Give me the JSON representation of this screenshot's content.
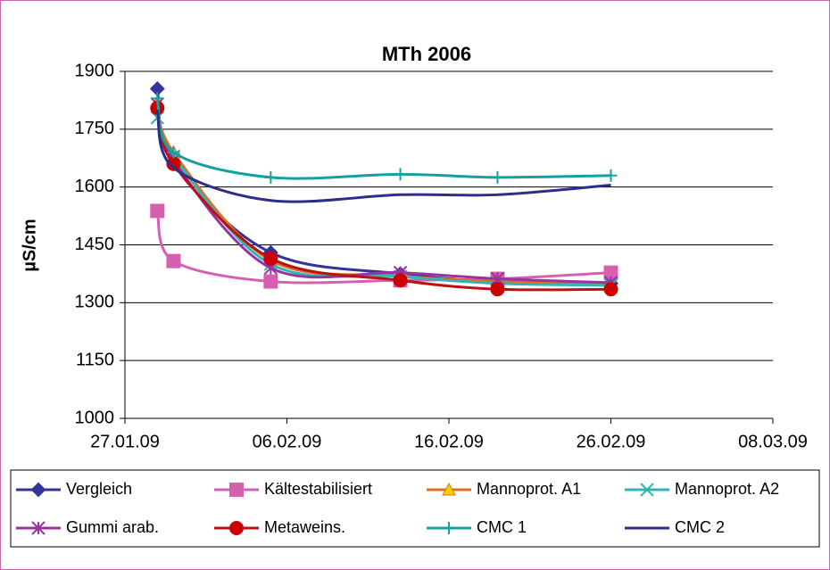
{
  "chart_data": {
    "type": "line",
    "title": "MTh 2006",
    "y_label": "µS/cm",
    "x": [
      "2009-01-29",
      "2009-01-30",
      "2009-02-05",
      "2009-02-13",
      "2009-02-19",
      "2009-02-26"
    ],
    "xlim": [
      "2009-01-27",
      "2009-03-08"
    ],
    "xticks": [
      {
        "value": "2009-01-27",
        "label": "27.01.09"
      },
      {
        "value": "2009-02-06",
        "label": "06.02.09"
      },
      {
        "value": "2009-02-16",
        "label": "16.02.09"
      },
      {
        "value": "2009-02-26",
        "label": "26.02.09"
      },
      {
        "value": "2009-03-08",
        "label": "08.03.09"
      }
    ],
    "ylim": [
      1000,
      1900
    ],
    "yticks": [
      1000,
      1150,
      1300,
      1450,
      1600,
      1750,
      1900
    ],
    "grid": true,
    "legend": "bottom",
    "smooth": true,
    "series": [
      {
        "name": "Vergleich",
        "color": "#333399",
        "marker": "diamond",
        "marker_color": "#333399",
        "values": [
          1855,
          1660,
          1430,
          1375,
          1355,
          1350
        ]
      },
      {
        "name": "Kältestabilisiert",
        "color": "#d65fb0",
        "marker": "square",
        "marker_color": "#d65fb0",
        "values": [
          1538,
          1408,
          1355,
          1358,
          1362,
          1378
        ]
      },
      {
        "name": "Mannoprot. A1",
        "color": "#e07020",
        "marker": "triangle",
        "marker_color": "#f5d000",
        "values": [
          1820,
          1690,
          1410,
          1370,
          1355,
          1348
        ]
      },
      {
        "name": "Mannoprot. A2",
        "color": "#33b3b3",
        "marker": "x",
        "marker_color": "#33b3b3",
        "values": [
          1780,
          1680,
          1400,
          1368,
          1350,
          1345
        ]
      },
      {
        "name": "Gummi arab.",
        "color": "#9933a0",
        "marker": "star",
        "marker_color": "#9933a0",
        "values": [
          1815,
          1670,
          1390,
          1378,
          1362,
          1352
        ]
      },
      {
        "name": "Metaweins.",
        "color": "#bb1111",
        "marker": "circle",
        "marker_color": "#cc0000",
        "values": [
          1805,
          1660,
          1415,
          1358,
          1335,
          1335
        ]
      },
      {
        "name": "CMC 1",
        "color": "#16a0a0",
        "marker": "plus",
        "marker_color": "#16a0a0",
        "values": [
          1830,
          1690,
          1625,
          1633,
          1625,
          1630
        ]
      },
      {
        "name": "CMC 2",
        "color": "#2d2d8a",
        "marker": "none",
        "marker_color": "#2d2d8a",
        "values": [
          1800,
          1650,
          1565,
          1580,
          1580,
          1605
        ]
      }
    ]
  }
}
